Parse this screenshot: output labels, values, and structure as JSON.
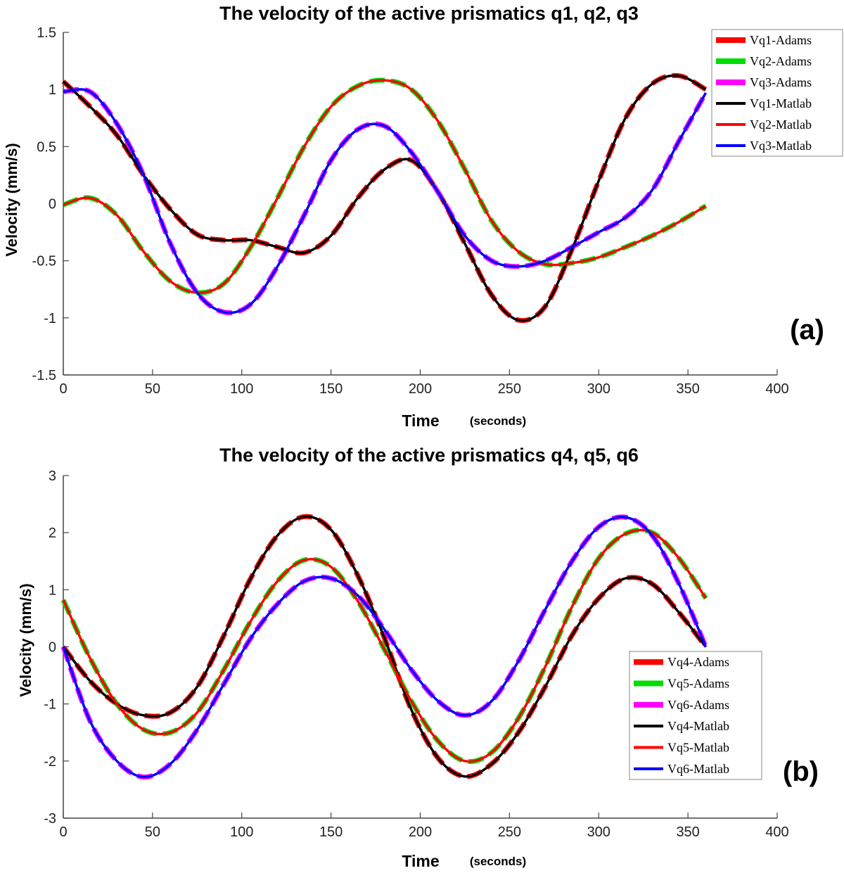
{
  "chart_data": [
    {
      "type": "line",
      "title": "The velocity of the active prismatics q1, q2, q3",
      "xlabel": "Time",
      "xlabel_unit": "(seconds)",
      "ylabel": "Velocity (mm/s)",
      "xlim": [
        0,
        400
      ],
      "ylim": [
        -1.5,
        1.5
      ],
      "xticks": [
        0,
        50,
        100,
        150,
        200,
        250,
        300,
        350,
        400
      ],
      "yticks": [
        -1.5,
        -1,
        -0.5,
        0,
        0.5,
        1,
        1.5
      ],
      "ytick_labels": [
        "-1.5",
        "-1",
        "-0.5",
        "0",
        "0.5",
        "1",
        "1.5"
      ],
      "grid": false,
      "legend_position": "top-right",
      "panel_label": "(a)",
      "x": [
        0,
        15,
        30,
        45,
        60,
        75,
        90,
        105,
        120,
        135,
        150,
        165,
        180,
        195,
        210,
        225,
        240,
        255,
        270,
        285,
        300,
        315,
        330,
        345,
        360
      ],
      "series": [
        {
          "name": "Vq1-Adams",
          "color": "#ff0000",
          "style": "dashed",
          "width": 7,
          "source": "q1",
          "values": [
            1.07,
            0.85,
            0.6,
            0.25,
            -0.05,
            -0.27,
            -0.32,
            -0.32,
            -0.38,
            -0.43,
            -0.28,
            0.05,
            0.3,
            0.38,
            0.1,
            -0.35,
            -0.8,
            -1.02,
            -0.9,
            -0.4,
            0.2,
            0.75,
            1.05,
            1.12,
            1.0
          ]
        },
        {
          "name": "Vq2-Adams",
          "color": "#00dd00",
          "style": "dashed",
          "width": 7,
          "source": "q2",
          "values": [
            -0.01,
            0.05,
            -0.1,
            -0.42,
            -0.68,
            -0.78,
            -0.7,
            -0.38,
            0.05,
            0.5,
            0.85,
            1.03,
            1.08,
            1.0,
            0.72,
            0.3,
            -0.15,
            -0.42,
            -0.53,
            -0.52,
            -0.47,
            -0.38,
            -0.28,
            -0.16,
            -0.02
          ]
        },
        {
          "name": "Vq3-Adams",
          "color": "#ff00ff",
          "style": "dashed",
          "width": 7,
          "source": "q3",
          "values": [
            0.98,
            0.98,
            0.7,
            0.25,
            -0.35,
            -0.78,
            -0.95,
            -0.88,
            -0.55,
            -0.1,
            0.38,
            0.65,
            0.68,
            0.45,
            0.1,
            -0.28,
            -0.5,
            -0.55,
            -0.5,
            -0.38,
            -0.25,
            -0.12,
            0.12,
            0.55,
            0.97
          ]
        },
        {
          "name": "Vq1-Matlab",
          "color": "#000000",
          "style": "solid",
          "width": 3.5,
          "source": "q1",
          "values": [
            1.07,
            0.85,
            0.6,
            0.25,
            -0.05,
            -0.27,
            -0.32,
            -0.32,
            -0.38,
            -0.43,
            -0.28,
            0.05,
            0.3,
            0.38,
            0.1,
            -0.35,
            -0.8,
            -1.02,
            -0.9,
            -0.4,
            0.2,
            0.75,
            1.05,
            1.12,
            1.0
          ]
        },
        {
          "name": "Vq2-Matlab",
          "color": "#ff0000",
          "style": "solid",
          "width": 3.5,
          "source": "q2",
          "values": [
            -0.01,
            0.05,
            -0.1,
            -0.42,
            -0.68,
            -0.78,
            -0.7,
            -0.38,
            0.05,
            0.5,
            0.85,
            1.03,
            1.08,
            1.0,
            0.72,
            0.3,
            -0.15,
            -0.42,
            -0.53,
            -0.52,
            -0.47,
            -0.38,
            -0.28,
            -0.16,
            -0.02
          ]
        },
        {
          "name": "Vq3-Matlab",
          "color": "#0000ff",
          "style": "solid",
          "width": 3.5,
          "source": "q3",
          "values": [
            0.98,
            0.98,
            0.7,
            0.25,
            -0.35,
            -0.78,
            -0.95,
            -0.88,
            -0.55,
            -0.1,
            0.38,
            0.65,
            0.68,
            0.45,
            0.1,
            -0.28,
            -0.5,
            -0.55,
            -0.5,
            -0.38,
            -0.25,
            -0.12,
            0.12,
            0.55,
            0.97
          ]
        }
      ]
    },
    {
      "type": "line",
      "title": "The velocity of the active prismatics q4, q5, q6",
      "xlabel": "Time",
      "xlabel_unit": "(seconds)",
      "ylabel": "Velocity (mm/s)",
      "xlim": [
        0,
        400
      ],
      "ylim": [
        -3,
        3
      ],
      "xticks": [
        0,
        50,
        100,
        150,
        200,
        250,
        300,
        350,
        400
      ],
      "yticks": [
        -3,
        -2,
        -1,
        0,
        1,
        2,
        3
      ],
      "ytick_labels": [
        "-3",
        "-2",
        "-1",
        "0",
        "1",
        "2",
        "3"
      ],
      "grid": false,
      "legend_position": "bottom-right",
      "panel_label": "(b)",
      "x": [
        0,
        15,
        30,
        45,
        60,
        75,
        90,
        105,
        120,
        135,
        150,
        165,
        180,
        195,
        210,
        225,
        240,
        255,
        270,
        285,
        300,
        315,
        330,
        345,
        360
      ],
      "series": [
        {
          "name": "Vq4-Adams",
          "color": "#ff0000",
          "style": "dashed",
          "width": 7,
          "source": "q4",
          "values": [
            0.0,
            -0.6,
            -1.0,
            -1.2,
            -1.15,
            -0.7,
            0.2,
            1.2,
            1.95,
            2.28,
            2.05,
            1.25,
            0.15,
            -1.1,
            -1.95,
            -2.27,
            -2.05,
            -1.5,
            -0.7,
            0.2,
            0.85,
            1.2,
            1.1,
            0.6,
            0.0
          ]
        },
        {
          "name": "Vq5-Adams",
          "color": "#00dd00",
          "style": "dashed",
          "width": 7,
          "source": "q5",
          "values": [
            0.82,
            -0.2,
            -1.0,
            -1.45,
            -1.5,
            -1.15,
            -0.4,
            0.45,
            1.15,
            1.52,
            1.4,
            0.8,
            -0.05,
            -0.95,
            -1.65,
            -2.0,
            -1.85,
            -1.25,
            -0.35,
            0.7,
            1.55,
            1.98,
            2.0,
            1.55,
            0.85
          ]
        },
        {
          "name": "Vq6-Adams",
          "color": "#ff00ff",
          "style": "dashed",
          "width": 7,
          "source": "q6",
          "values": [
            0.0,
            -1.3,
            -2.0,
            -2.28,
            -2.05,
            -1.45,
            -0.65,
            0.15,
            0.75,
            1.15,
            1.2,
            0.9,
            0.3,
            -0.4,
            -0.95,
            -1.2,
            -0.95,
            -0.25,
            0.65,
            1.5,
            2.1,
            2.27,
            1.95,
            1.1,
            0.0
          ]
        },
        {
          "name": "Vq4-Matlab",
          "color": "#000000",
          "style": "solid",
          "width": 3.5,
          "source": "q4",
          "values": [
            0.0,
            -0.6,
            -1.0,
            -1.2,
            -1.15,
            -0.7,
            0.2,
            1.2,
            1.95,
            2.28,
            2.05,
            1.25,
            0.15,
            -1.1,
            -1.95,
            -2.27,
            -2.05,
            -1.5,
            -0.7,
            0.2,
            0.85,
            1.2,
            1.1,
            0.6,
            0.0
          ]
        },
        {
          "name": "Vq5-Matlab",
          "color": "#ff0000",
          "style": "solid",
          "width": 3.5,
          "source": "q5",
          "values": [
            0.82,
            -0.2,
            -1.0,
            -1.45,
            -1.5,
            -1.15,
            -0.4,
            0.45,
            1.15,
            1.52,
            1.4,
            0.8,
            -0.05,
            -0.95,
            -1.65,
            -2.0,
            -1.85,
            -1.25,
            -0.35,
            0.7,
            1.55,
            1.98,
            2.0,
            1.55,
            0.85
          ]
        },
        {
          "name": "Vq6-Matlab",
          "color": "#0000ff",
          "style": "solid",
          "width": 3.5,
          "source": "q6",
          "values": [
            0.0,
            -1.3,
            -2.0,
            -2.28,
            -2.05,
            -1.45,
            -0.65,
            0.15,
            0.75,
            1.15,
            1.2,
            0.9,
            0.3,
            -0.4,
            -0.95,
            -1.2,
            -0.95,
            -0.25,
            0.65,
            1.5,
            2.1,
            2.27,
            1.95,
            1.1,
            0.0
          ]
        }
      ]
    }
  ]
}
